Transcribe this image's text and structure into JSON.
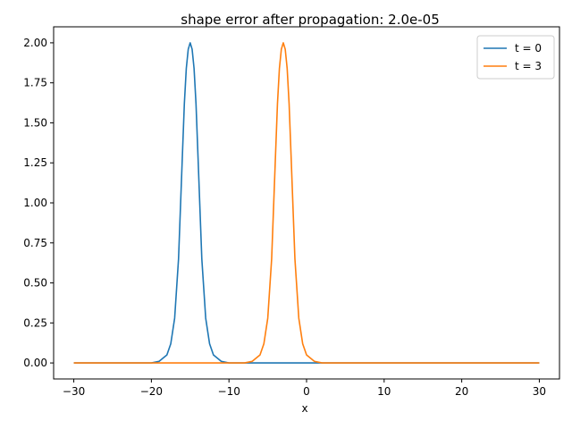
{
  "chart_data": {
    "type": "line",
    "title": "shape error after propagation: 2.0e-05",
    "xlabel": "x",
    "ylabel": "",
    "xlim": [
      -32.6,
      32.6
    ],
    "ylim": [
      -0.1,
      2.1
    ],
    "xticks": [
      -30,
      -20,
      -10,
      0,
      10,
      20,
      30
    ],
    "xtick_labels": [
      "−30",
      "−20",
      "−10",
      "0",
      "10",
      "20",
      "30"
    ],
    "yticks": [
      0.0,
      0.25,
      0.5,
      0.75,
      1.0,
      1.25,
      1.5,
      1.75,
      2.0
    ],
    "ytick_labels": [
      "0.00",
      "0.25",
      "0.50",
      "0.75",
      "1.00",
      "1.25",
      "1.50",
      "1.75",
      "2.00"
    ],
    "grid": false,
    "legend_position": "top-right",
    "series": [
      {
        "name": "t = 0",
        "color": "#1f77b4",
        "x": [
          -30,
          -22,
          -20,
          -19,
          -18,
          -17.5,
          -17,
          -16.5,
          -16,
          -15.75,
          -15.5,
          -15.25,
          -15,
          -14.75,
          -14.5,
          -14.25,
          -14,
          -13.5,
          -13,
          -12.5,
          -12,
          -11,
          -10,
          -8,
          0,
          10,
          20,
          30
        ],
        "y": [
          0.0,
          0.0,
          0.0,
          0.01,
          0.05,
          0.12,
          0.28,
          0.65,
          1.3,
          1.62,
          1.84,
          1.96,
          2.0,
          1.96,
          1.84,
          1.62,
          1.3,
          0.65,
          0.28,
          0.12,
          0.05,
          0.01,
          0.0,
          0.0,
          0.0,
          0.0,
          0.0,
          0.0
        ]
      },
      {
        "name": "t = 3",
        "color": "#ff7f0e",
        "x": [
          -30,
          -20,
          -10,
          -8,
          -7,
          -6,
          -5.5,
          -5,
          -4.5,
          -4,
          -3.75,
          -3.5,
          -3.25,
          -3,
          -2.75,
          -2.5,
          -2.25,
          -2,
          -1.5,
          -1,
          -0.5,
          0,
          1,
          2,
          4,
          10,
          20,
          30
        ],
        "y": [
          0.0,
          0.0,
          0.0,
          0.0,
          0.01,
          0.05,
          0.12,
          0.28,
          0.65,
          1.3,
          1.62,
          1.84,
          1.96,
          2.0,
          1.96,
          1.84,
          1.62,
          1.3,
          0.65,
          0.28,
          0.12,
          0.05,
          0.01,
          0.0,
          0.0,
          0.0,
          0.0,
          0.0
        ]
      }
    ]
  }
}
